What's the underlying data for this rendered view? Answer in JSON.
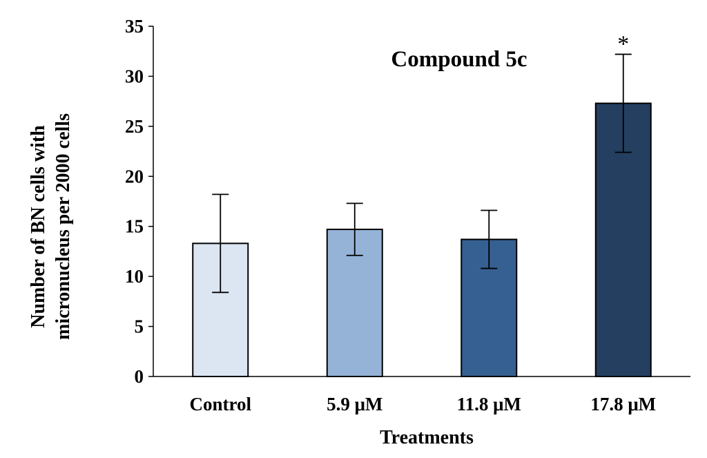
{
  "chart_data": {
    "type": "bar",
    "title": "Compound 5c",
    "xlabel": "Treatments",
    "ylabel": [
      "Number of BN cells with",
      "micronucleus per 2000 cells"
    ],
    "categories": [
      "Control",
      "5.9 μM",
      "11.8 μM",
      "17.8 μM"
    ],
    "values": [
      13.3,
      14.7,
      13.7,
      27.3
    ],
    "errors": [
      4.9,
      2.6,
      2.9,
      4.9
    ],
    "colors": [
      "#dce6f2",
      "#95b3d7",
      "#366092",
      "#243f60"
    ],
    "annotations": [
      "",
      "",
      "",
      "*"
    ],
    "ylim": [
      0,
      35
    ],
    "yticks": [
      "0",
      "5",
      "10",
      "15",
      "20",
      "25",
      "30",
      "35"
    ],
    "grid": false
  }
}
